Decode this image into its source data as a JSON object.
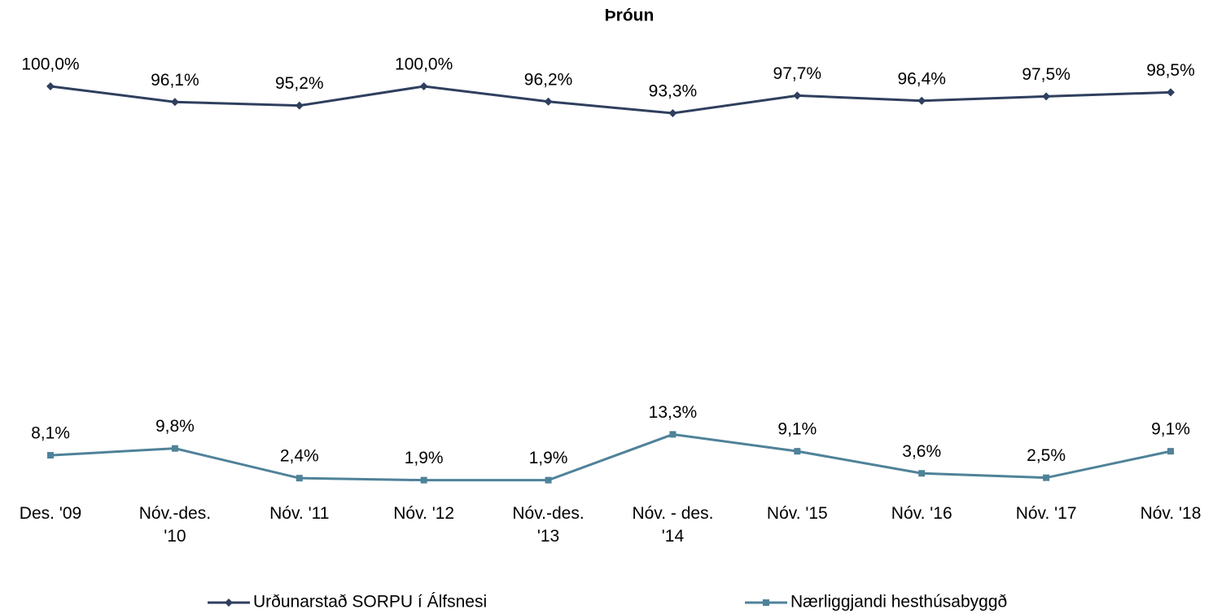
{
  "chart_data": {
    "type": "line",
    "title": "Þróun",
    "categories": [
      "Des. '09",
      "Nóv.-des.\n'10",
      "Nóv. '11",
      "Nóv. '12",
      "Nóv.-des.\n'13",
      "Nóv. - des.\n'14",
      "Nóv. '15",
      "Nóv. '16",
      "Nóv. '17",
      "Nóv. '18"
    ],
    "series": [
      {
        "name": "Urðunarstað SORPU í Álfsnesi",
        "color": "#2f3f5e",
        "marker": "diamond",
        "values": [
          100.0,
          96.1,
          95.2,
          100.0,
          96.2,
          93.3,
          97.7,
          96.4,
          97.5,
          98.5
        ],
        "value_labels": [
          "100,0%",
          "96,1%",
          "95,2%",
          "100,0%",
          "96,2%",
          "93,3%",
          "97,7%",
          "96,4%",
          "97,5%",
          "98,5%"
        ]
      },
      {
        "name": "Nærliggjandi hesthúsabyggð",
        "color": "#4f8299",
        "marker": "square",
        "values": [
          8.1,
          9.8,
          2.4,
          1.9,
          1.9,
          13.3,
          9.1,
          3.6,
          2.5,
          9.1
        ],
        "value_labels": [
          "8,1%",
          "9,8%",
          "2,4%",
          "1,9%",
          "1,9%",
          "13,3%",
          "9,1%",
          "3,6%",
          "2,5%",
          "9,1%"
        ]
      }
    ],
    "ylim": [
      0,
      100
    ],
    "legend": "bottom"
  }
}
